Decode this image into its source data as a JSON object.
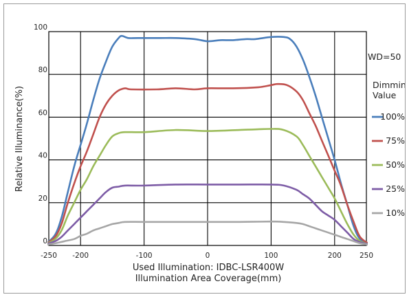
{
  "chart_data": {
    "type": "line",
    "xlabel_line1": "Used Illumination: IDBC-LSR400W",
    "xlabel_line2": "Illumination Area Coverage(mm)",
    "ylabel": "Relative Illuminance(%)",
    "xlim": [
      -250,
      250
    ],
    "ylim": [
      0,
      100
    ],
    "x_ticks": [
      -250,
      -200,
      -100,
      0,
      100,
      200,
      250
    ],
    "y_ticks": [
      0,
      20,
      40,
      60,
      80,
      100
    ],
    "grid": true,
    "wd_label": "WD=50",
    "legend_title_line1": "Dimming",
    "legend_title_line2": "Value",
    "series": [
      {
        "name": "100%",
        "color": "#4a7ebb",
        "x": [
          -255,
          -240,
          -230,
          -220,
          -210,
          -200,
          -190,
          -180,
          -170,
          -160,
          -150,
          -140,
          -135,
          -125,
          -110,
          -75,
          -50,
          -20,
          0,
          20,
          40,
          60,
          75,
          100,
          120,
          130,
          140,
          150,
          160,
          170,
          180,
          190,
          200,
          210,
          220,
          230,
          240,
          255
        ],
        "y": [
          0.5,
          5,
          13,
          25,
          37,
          47,
          57,
          68,
          78,
          86,
          93,
          97,
          98,
          97,
          97,
          97,
          97,
          96.5,
          95.5,
          96,
          96,
          96.5,
          96.5,
          97.5,
          97.5,
          96.5,
          93,
          87,
          79,
          70,
          60,
          50,
          40,
          29,
          19,
          9,
          3,
          0.5
        ]
      },
      {
        "name": "75%",
        "color": "#c0504d",
        "x": [
          -255,
          -240,
          -230,
          -220,
          -210,
          -200,
          -190,
          -180,
          -170,
          -160,
          -150,
          -140,
          -130,
          -120,
          -80,
          -50,
          -20,
          0,
          40,
          80,
          100,
          110,
          125,
          140,
          150,
          160,
          170,
          180,
          190,
          200,
          210,
          220,
          230,
          240,
          255
        ],
        "y": [
          0.5,
          4,
          10,
          20,
          29,
          37,
          44,
          52,
          60,
          66,
          70,
          72.5,
          73.5,
          73,
          73,
          73.5,
          73,
          73.5,
          73.5,
          74,
          75,
          75.5,
          75,
          72,
          68,
          62,
          56,
          49,
          42,
          35,
          28,
          19,
          11,
          4,
          0.5
        ]
      },
      {
        "name": "50%",
        "color": "#9bbb59",
        "x": [
          -255,
          -240,
          -230,
          -220,
          -210,
          -200,
          -190,
          -180,
          -170,
          -160,
          -150,
          -140,
          -130,
          -100,
          -50,
          0,
          50,
          100,
          120,
          140,
          150,
          160,
          170,
          180,
          190,
          200,
          210,
          220,
          230,
          240,
          255
        ],
        "y": [
          0.5,
          3,
          7,
          14,
          20,
          26,
          31,
          37,
          42,
          47,
          51,
          52.5,
          53,
          53,
          54,
          53.5,
          54,
          54.5,
          54,
          51,
          47,
          42,
          37,
          32,
          27,
          22,
          16,
          10,
          5,
          2,
          0.5
        ]
      },
      {
        "name": "25%",
        "color": "#7d5ca6",
        "x": [
          -255,
          -240,
          -230,
          -220,
          -210,
          -200,
          -190,
          -180,
          -170,
          -160,
          -150,
          -140,
          -130,
          -100,
          -50,
          0,
          50,
          100,
          120,
          140,
          150,
          160,
          170,
          180,
          190,
          200,
          210,
          220,
          230,
          240,
          255
        ],
        "y": [
          0.5,
          2,
          4,
          7,
          10,
          13,
          16,
          19,
          22,
          25,
          27,
          27.5,
          28,
          28,
          28.5,
          28.5,
          28.5,
          28.5,
          28,
          26,
          24,
          22,
          19,
          16,
          14,
          12,
          9,
          6,
          3,
          1.5,
          0.5
        ]
      },
      {
        "name": "10%",
        "color": "#a6a6a6",
        "x": [
          -255,
          -240,
          -225,
          -210,
          -200,
          -190,
          -180,
          -170,
          -160,
          -150,
          -140,
          -130,
          -100,
          -50,
          0,
          50,
          100,
          120,
          140,
          150,
          160,
          170,
          180,
          190,
          200,
          210,
          220,
          230,
          240,
          255
        ],
        "y": [
          0.3,
          1,
          2,
          3,
          4.5,
          5.5,
          7,
          8,
          9,
          10,
          10.5,
          11,
          11,
          11,
          11,
          11,
          11.2,
          11,
          10.5,
          10,
          9,
          8,
          7,
          6,
          5,
          4,
          3,
          2,
          1,
          0.3
        ]
      }
    ]
  }
}
